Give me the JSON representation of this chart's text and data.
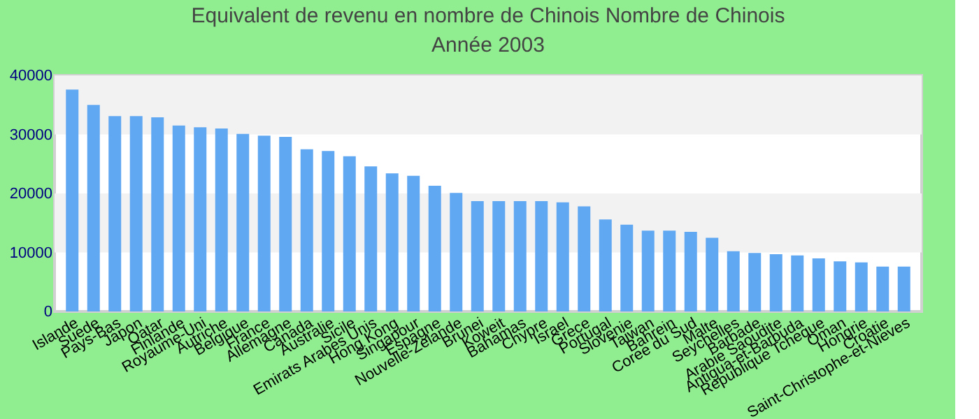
{
  "chart_data": {
    "type": "bar",
    "title": "Equivalent de revenu en nombre de Chinois  Nombre de Chinois",
    "subtitle": "Année 2003",
    "categories": [
      "Islande",
      "Suede",
      "Pays-Bas",
      "Japon",
      "Qatar",
      "Finlande",
      "Royaume-Uni",
      "Autriche",
      "Belgique",
      "France",
      "Allemagne",
      "Canada",
      "Australie",
      "Sicile",
      "Emirats Arabes Unis",
      "Hong Kong",
      "Singapour",
      "Espagne",
      "Nouvelle-Zelande",
      "Brunei",
      "Koweit",
      "Bahamas",
      "Chypre",
      "Israel",
      "Grece",
      "Portugal",
      "Slovenie",
      "Taiwan",
      "Bahrein",
      "Coree du Sud",
      "Malte",
      "Seychelles",
      "Barbade",
      "Arabie Saoudite",
      "Antigua-et-Barbuda",
      "Republique Tcheque",
      "Oman",
      "Hongrie",
      "Croatie",
      "Saint-Christophe-et-Nieves"
    ],
    "series": [
      {
        "color": "#60a8f2",
        "values": [
          37600,
          35000,
          33100,
          33100,
          32900,
          31500,
          31200,
          31000,
          30100,
          29800,
          29600,
          27500,
          27200,
          26300,
          24600,
          23400,
          23000,
          21300,
          20100,
          18700,
          18700,
          18700,
          18700,
          18500,
          17800,
          15600,
          14700,
          13700,
          13700,
          13500,
          12500,
          10200,
          9900,
          9700,
          9500,
          9000,
          8500,
          8300,
          7600,
          7600
        ]
      }
    ],
    "ylim": [
      0,
      40000
    ],
    "yticks": [
      0,
      10000,
      20000,
      30000,
      40000
    ],
    "grid": false,
    "bands": [
      {
        "axis": "y",
        "from": 10000,
        "to": 20000,
        "color": "#f2f2f2"
      },
      {
        "axis": "y",
        "from": 30000,
        "to": 40000,
        "color": "#f2f2f2"
      }
    ]
  }
}
